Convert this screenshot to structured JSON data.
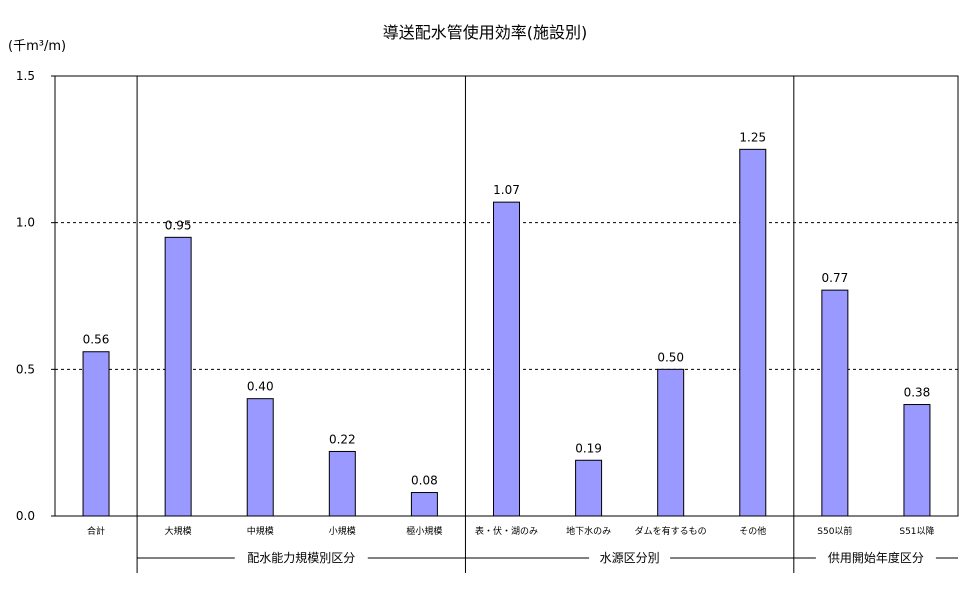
{
  "chart_data": {
    "type": "bar",
    "title": "導送配水管使用効率(施設別)",
    "ylabel": "(千m³/m)",
    "xlabel": "",
    "ylim": [
      0,
      1.5
    ],
    "yticks": [
      "0.0",
      "0.5",
      "1.0",
      "1.5"
    ],
    "grid": "horizontal dashed at 0.5 and 1.0",
    "legend": "none",
    "bar_color": "#9999ff",
    "categories": [
      "合計",
      "大規模",
      "中規模",
      "小規模",
      "極小規模",
      "表・伏・湖のみ",
      "地下水のみ",
      "ダムを有するもの",
      "その他",
      "S50以前",
      "S51以降"
    ],
    "values": [
      0.56,
      0.95,
      0.4,
      0.22,
      0.08,
      1.07,
      0.19,
      0.5,
      1.25,
      0.77,
      0.38
    ],
    "value_labels": [
      "0.56",
      "0.95",
      "0.40",
      "0.22",
      "0.08",
      "1.07",
      "0.19",
      "0.50",
      "1.25",
      "0.77",
      "0.38"
    ],
    "groups": [
      {
        "label": "配水能力規模別区分",
        "start": 1,
        "end": 4
      },
      {
        "label": "水源区分別",
        "start": 5,
        "end": 8
      },
      {
        "label": "供用開始年度区分",
        "start": 9,
        "end": 10
      }
    ]
  }
}
